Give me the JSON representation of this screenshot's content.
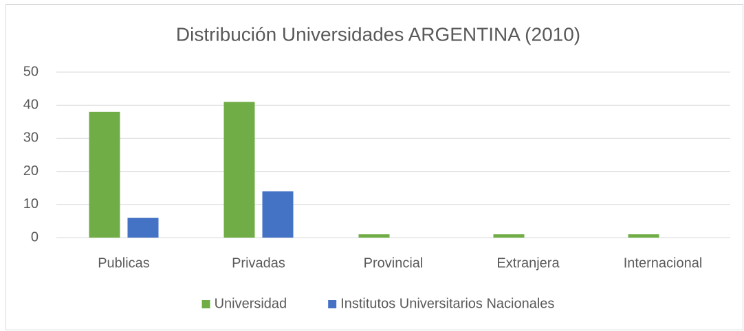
{
  "chart_data": {
    "type": "bar",
    "title": "Distribución Universidades ARGENTINA (2010)",
    "categories": [
      "Publicas",
      "Privadas",
      "Provincial",
      "Extranjera",
      "Internacional"
    ],
    "series": [
      {
        "name": "Universidad",
        "color": "#70ad47",
        "values": [
          38,
          41,
          1,
          1,
          1
        ]
      },
      {
        "name": "Institutos Universitarios Nacionales",
        "color": "#4472c4",
        "values": [
          6,
          14,
          0,
          0,
          0
        ]
      }
    ],
    "ylim": [
      0,
      50
    ],
    "yticks": [
      0,
      10,
      20,
      30,
      40,
      50
    ],
    "grid": true,
    "legend": "bottom"
  }
}
